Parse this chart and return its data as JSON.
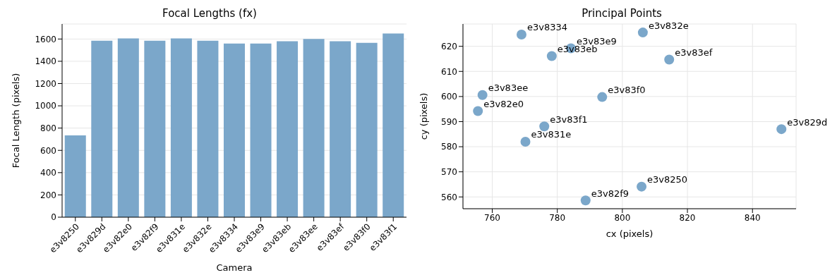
{
  "chart_data": [
    {
      "type": "bar",
      "title": "Focal Lengths (fx)",
      "xlabel": "Camera",
      "ylabel": "Focal Length (pixels)",
      "categories": [
        "e3v8250",
        "e3v829d",
        "e3v82e0",
        "e3v82f9",
        "e3v831e",
        "e3v832e",
        "e3v8334",
        "e3v83e9",
        "e3v83eb",
        "e3v83ee",
        "e3v83ef",
        "e3v83f0",
        "e3v83f1"
      ],
      "values": [
        735,
        1585,
        1605,
        1585,
        1605,
        1585,
        1560,
        1560,
        1580,
        1600,
        1580,
        1565,
        1650
      ],
      "color": "#7ba7ca",
      "ylim": [
        0,
        1735
      ],
      "yticks": [
        0,
        200,
        400,
        600,
        800,
        1000,
        1200,
        1400,
        1600
      ],
      "grid": "y"
    },
    {
      "type": "scatter",
      "title": "Principal Points",
      "xlabel": "cx (pixels)",
      "ylabel": "cy (pixels)",
      "x": [
        805.9,
        848.9,
        755.6,
        788.7,
        770.2,
        806.3,
        769,
        784.2,
        778.3,
        757,
        814.4,
        793.8,
        776
      ],
      "values": [
        564.1,
        587,
        594.2,
        558.6,
        582,
        625.5,
        624.7,
        619.2,
        616.1,
        600.6,
        614.7,
        599.8,
        588.1
      ],
      "value_labels": [
        "e3v8250",
        "e3v829d",
        "e3v82e0",
        "e3v82f9",
        "e3v831e",
        "e3v832e",
        "e3v8334",
        "e3v83e9",
        "e3v83eb",
        "e3v83ee",
        "e3v83ef",
        "e3v83f0",
        "e3v83f1"
      ],
      "color": "#7ba7ca",
      "marker": "circle",
      "xlim": [
        751,
        853.4
      ],
      "xticks": [
        760,
        780,
        800,
        820,
        840
      ],
      "ylim": [
        555.3,
        628.9
      ],
      "yticks": [
        560,
        570,
        580,
        590,
        600,
        610,
        620
      ],
      "grid": true
    }
  ]
}
